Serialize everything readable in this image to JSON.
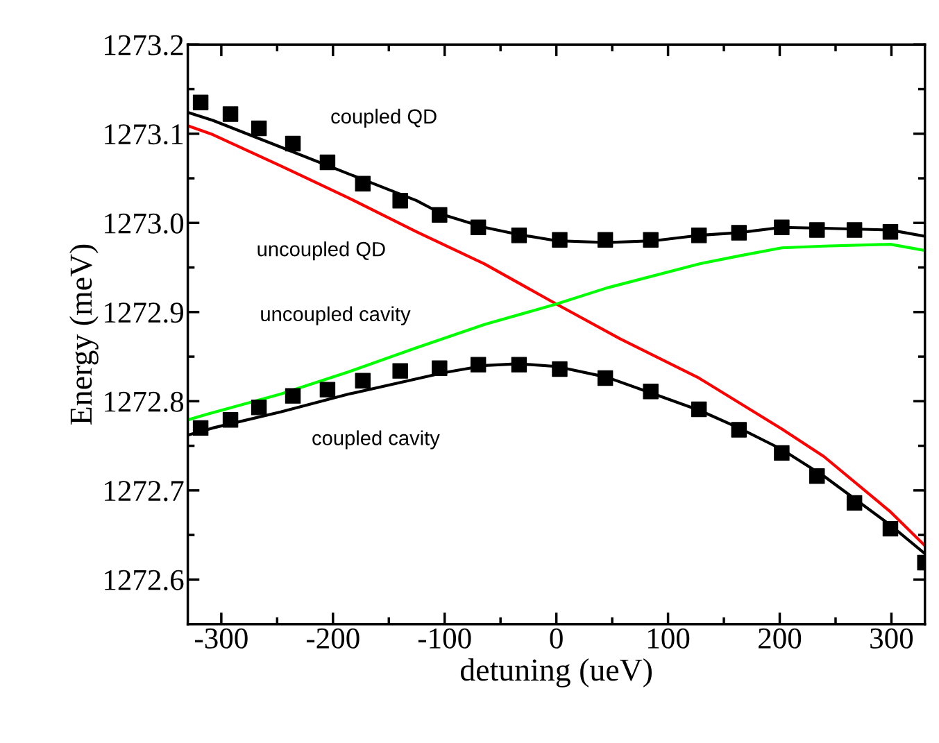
{
  "chart_data": {
    "type": "line",
    "xlabel": "detuning (ueV)",
    "ylabel": "Energy (meV)",
    "xlim": [
      -330,
      330
    ],
    "ylim": [
      1272.55,
      1273.2
    ],
    "xticks": [
      {
        "value": -300,
        "label": "-300"
      },
      {
        "value": -200,
        "label": "-200"
      },
      {
        "value": -100,
        "label": "-100"
      },
      0,
      100,
      200,
      300
    ],
    "yticks": [
      1272.6,
      1272.7,
      1272.8,
      1272.9,
      {
        "value": 1273.0,
        "label": "1273.0"
      },
      1273.1,
      1273.2
    ],
    "grid": false,
    "legend": false,
    "series": [
      {
        "type": "scatter",
        "marker": "square",
        "color": "#000000",
        "x": [
          -318.5,
          -291.8,
          -266.3,
          -235.9,
          -204.9,
          -173.3,
          -139.8,
          -104.6,
          -69.9,
          -33.4,
          3,
          43.8,
          84.5,
          127.7,
          163.5,
          201.8,
          233.4,
          266.9,
          299.1
        ],
        "values": [
          1273.135,
          1273.122,
          1273.106,
          1273.089,
          1273.068,
          1273.044,
          1273.025,
          1273.009,
          1272.995,
          1272.986,
          1272.981,
          1272.981,
          1272.981,
          1272.986,
          1272.989,
          1272.995,
          1272.992,
          1272.992,
          1272.99
        ]
      },
      {
        "type": "scatter",
        "marker": "square",
        "color": "#000000",
        "x": [
          -318.5,
          -291.8,
          -266.3,
          -235.9,
          -204.9,
          -173.3,
          -139.8,
          -104.6,
          -69.9,
          -33.4,
          3,
          43.8,
          84.5,
          127.7,
          163.5,
          201.8,
          233.4,
          266.9,
          299.1,
          330
        ],
        "values": [
          1272.77,
          1272.779,
          1272.793,
          1272.806,
          1272.813,
          1272.823,
          1272.834,
          1272.837,
          1272.841,
          1272.841,
          1272.836,
          1272.826,
          1272.811,
          1272.791,
          1272.768,
          1272.742,
          1272.716,
          1272.686,
          1272.657,
          1272.619
        ]
      },
      {
        "color": "#000000",
        "x": [
          -330,
          -307.6,
          -246.8,
          -186,
          -125.2,
          -100.9,
          -64.4,
          -34,
          0,
          45,
          87.5,
          127.7,
          163.5,
          201.8,
          239.5,
          299.1,
          330
        ],
        "values": [
          1273.124,
          1273.115,
          1273.085,
          1273.055,
          1273.025,
          1273.009,
          1272.995,
          1272.987,
          1272.98,
          1272.978,
          1272.98,
          1272.986,
          1272.989,
          1272.995,
          1272.994,
          1272.992,
          1272.985
        ]
      },
      {
        "color": "#000000",
        "x": [
          -330,
          -307.6,
          -246.8,
          -186,
          -100.9,
          -64.4,
          -34,
          0,
          45,
          87.5,
          127.7,
          163.5,
          201.8,
          239.5,
          299.1,
          330
        ],
        "values": [
          1272.762,
          1272.77,
          1272.788,
          1272.808,
          1272.832,
          1272.84,
          1272.842,
          1272.839,
          1272.827,
          1272.808,
          1272.79,
          1272.77,
          1272.746,
          1272.716,
          1272.661,
          1272.629
        ]
      },
      {
        "color": "#ff0000",
        "x": [
          -330,
          -307.6,
          -246.8,
          -186,
          -125.2,
          -64.4,
          0,
          57.1,
          127.7,
          201.8,
          239.5,
          299.1,
          330
        ],
        "values": [
          1273.109,
          1273.099,
          1273.064,
          1273.028,
          1272.99,
          1272.954,
          1272.909,
          1272.87,
          1272.826,
          1272.769,
          1272.738,
          1272.676,
          1272.638
        ]
      },
      {
        "color": "#00ff00",
        "x": [
          -330,
          -313.7,
          -246.8,
          -186,
          -125.2,
          -64.4,
          0,
          45,
          127.7,
          163.5,
          201.8,
          239.5,
          299.1,
          330
        ],
        "values": [
          1272.779,
          1272.785,
          1272.808,
          1272.833,
          1272.86,
          1272.886,
          1272.909,
          1272.927,
          1272.954,
          1272.963,
          1272.972,
          1272.974,
          1272.976,
          1272.969
        ]
      }
    ],
    "annotations": [
      "coupled QD",
      "uncoupled QD",
      "uncoupled cavity",
      "coupled cavity"
    ]
  }
}
